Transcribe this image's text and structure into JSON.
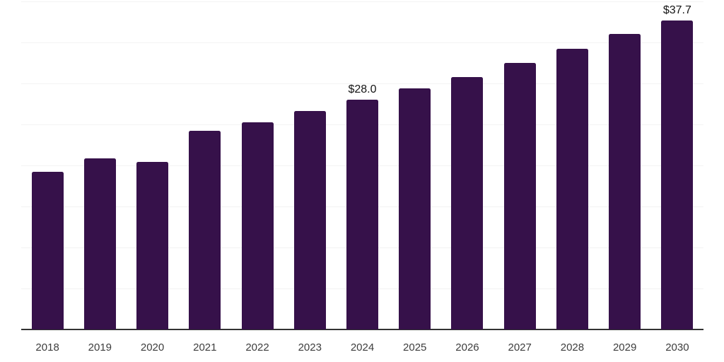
{
  "chart_data": {
    "type": "bar",
    "title": "",
    "xlabel": "",
    "ylabel": "",
    "categories": [
      "2018",
      "2019",
      "2020",
      "2021",
      "2022",
      "2023",
      "2024",
      "2025",
      "2026",
      "2027",
      "2028",
      "2029",
      "2030"
    ],
    "values": [
      19.2,
      20.9,
      20.4,
      24.2,
      25.3,
      26.6,
      28.0,
      29.4,
      30.8,
      32.5,
      34.2,
      36.0,
      37.7
    ],
    "annotations": [
      {
        "category": "2024",
        "text": "$28.0"
      },
      {
        "category": "2030",
        "text": "$37.7"
      }
    ],
    "ylim": [
      0,
      40
    ],
    "gridline_step": 5,
    "grid": "horizontal-only",
    "legend": "none",
    "y_tick_labels_visible": false,
    "colors": {
      "bar": "#36114a",
      "background": "#ffffff",
      "gridline": "#f3f3f3",
      "axis_line": "#333333",
      "tick_label": "#3d3d3d",
      "annotation": "#141414"
    }
  }
}
